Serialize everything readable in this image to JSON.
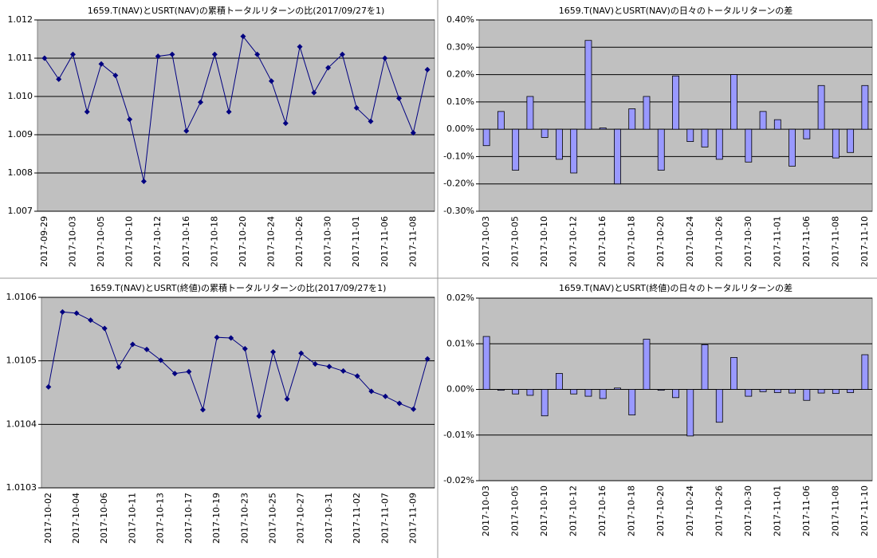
{
  "chart_data": [
    {
      "type": "line",
      "title": "1659.T(NAV)とUSRT(NAV)の累積トータルリターンの比(2017/09/27を1)",
      "categories": [
        "2017-09-29",
        null,
        "2017-10-03",
        null,
        "2017-10-05",
        null,
        "2017-10-10",
        null,
        "2017-10-12",
        null,
        "2017-10-16",
        null,
        "2017-10-18",
        null,
        "2017-10-20",
        null,
        "2017-10-24",
        null,
        "2017-10-26",
        null,
        "2017-10-30",
        null,
        "2017-11-01",
        null,
        "2017-11-06",
        null,
        "2017-11-08",
        null
      ],
      "values": [
        1.011,
        1.01045,
        1.0111,
        1.0096,
        1.01085,
        1.01055,
        1.0094,
        1.00778,
        1.01105,
        1.0111,
        1.0091,
        1.00985,
        1.0111,
        1.0096,
        1.01157,
        1.0111,
        1.0104,
        1.0093,
        1.0113,
        1.0101,
        1.01075,
        1.0111,
        1.0097,
        1.00935,
        1.011,
        1.00995,
        1.00905,
        1.0107
      ],
      "color": "#000080",
      "ylim": [
        1.007,
        1.012
      ],
      "yticks": [
        1.007,
        1.008,
        1.009,
        {
          "value": 1.01,
          "label": "1.010"
        },
        1.011,
        1.012
      ],
      "grid": true
    },
    {
      "type": "bar",
      "title": "1659.T(NAV)とUSRT(NAV)の日々のトータルリターンの差",
      "categories": [
        "2017-10-03",
        null,
        "2017-10-05",
        null,
        "2017-10-10",
        null,
        "2017-10-12",
        null,
        "2017-10-16",
        null,
        "2017-10-18",
        null,
        "2017-10-20",
        null,
        "2017-10-24",
        null,
        "2017-10-26",
        null,
        "2017-10-30",
        null,
        "2017-11-01",
        null,
        "2017-11-06",
        null,
        "2017-11-08",
        null,
        "2017-11-10"
      ],
      "values": [
        -0.06,
        0.065,
        -0.15,
        0.12,
        -0.03,
        -0.11,
        -0.16,
        0.325,
        0.005,
        -0.2,
        0.075,
        0.12,
        -0.15,
        0.195,
        -0.045,
        -0.065,
        -0.11,
        0.2,
        -0.12,
        0.065,
        0.035,
        -0.135,
        -0.035,
        0.16,
        -0.105,
        -0.085,
        0.16
      ],
      "color": "#9999ff",
      "ylim": [
        -0.3,
        0.4
      ],
      "yticks": [
        {
          "value": -0.3,
          "label": "-0.30%"
        },
        {
          "value": -0.2,
          "label": "-0.20%"
        },
        {
          "value": -0.1,
          "label": "-0.10%"
        },
        {
          "value": 0,
          "label": "0.00%"
        },
        {
          "value": 0.1,
          "label": "0.10%"
        },
        {
          "value": 0.2,
          "label": "0.20%"
        },
        {
          "value": 0.3,
          "label": "0.30%"
        },
        {
          "value": 0.4,
          "label": "0.40%"
        }
      ],
      "grid": true
    },
    {
      "type": "line",
      "title": "1659.T(NAV)とUSRT(終値)の累積トータルリターンの比(2017/09/27を1)",
      "categories": [
        "2017-10-02",
        null,
        "2017-10-04",
        null,
        "2017-10-06",
        null,
        "2017-10-11",
        null,
        "2017-10-13",
        null,
        "2017-10-17",
        null,
        "2017-10-19",
        null,
        "2017-10-23",
        null,
        "2017-10-25",
        null,
        "2017-10-27",
        null,
        "2017-10-31",
        null,
        "2017-11-02",
        null,
        "2017-11-07",
        null,
        "2017-11-09",
        null
      ],
      "values": [
        1.010459,
        1.010577,
        1.010575,
        1.010564,
        1.010551,
        1.01049,
        1.010526,
        1.010518,
        1.010501,
        1.01048,
        1.010483,
        1.010423,
        1.010537,
        1.010536,
        1.010519,
        1.010413,
        1.010514,
        1.01044,
        1.010512,
        1.010495,
        1.010491,
        1.010484,
        1.010476,
        1.010452,
        1.010444,
        1.010433,
        1.010424,
        1.010503
      ],
      "color": "#000080",
      "ylim": [
        1.0103,
        1.0106
      ],
      "yticks": [
        1.0103,
        1.0104,
        1.0105,
        1.0106
      ],
      "grid": true
    },
    {
      "type": "bar",
      "title": "1659.T(NAV)とUSRT(終値)の日々のトータルリターンの差",
      "categories": [
        "2017-10-03",
        null,
        "2017-10-05",
        null,
        "2017-10-10",
        null,
        "2017-10-12",
        null,
        "2017-10-16",
        null,
        "2017-10-18",
        null,
        "2017-10-20",
        null,
        "2017-10-24",
        null,
        "2017-10-26",
        null,
        "2017-10-30",
        null,
        "2017-11-01",
        null,
        "2017-11-06",
        null,
        "2017-11-08",
        null,
        "2017-11-10"
      ],
      "values": [
        0.0116,
        -0.0002,
        -0.001,
        -0.0013,
        -0.0058,
        0.0035,
        -0.001,
        -0.0015,
        -0.002,
        0.0003,
        -0.0056,
        0.011,
        -0.0002,
        -0.0018,
        -0.0102,
        0.0098,
        -0.0072,
        0.007,
        -0.0015,
        -0.0005,
        -0.0007,
        -0.0008,
        -0.0024,
        -0.0008,
        -0.0009,
        -0.0007,
        0.0076
      ],
      "color": "#9999ff",
      "ylim": [
        -0.02,
        0.02
      ],
      "yticks": [
        {
          "value": -0.02,
          "label": "-0.02%"
        },
        {
          "value": -0.01,
          "label": "-0.01%"
        },
        {
          "value": 0,
          "label": "0.00%"
        },
        {
          "value": 0.01,
          "label": "0.01%"
        },
        {
          "value": 0.02,
          "label": "0.02%"
        }
      ],
      "grid": true
    }
  ]
}
